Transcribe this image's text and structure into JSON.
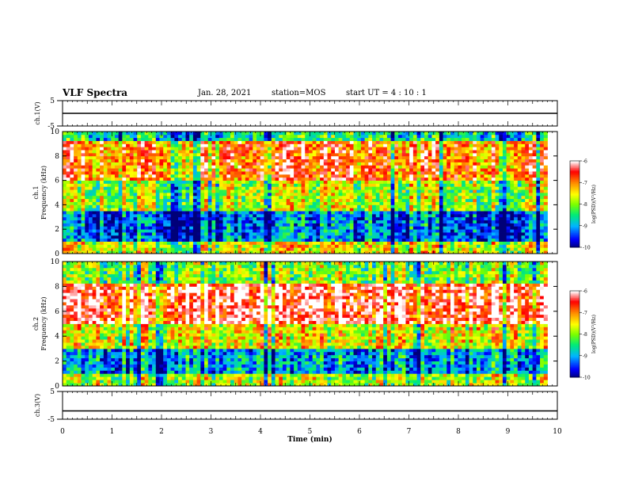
{
  "header": {
    "title": "VLF Spectra",
    "date": "Jan. 28, 2021",
    "station": "station=MOS",
    "start_ut": "start UT =  4 : 10 : 1"
  },
  "chart_data": [
    {
      "type": "line",
      "panel": "ch1-voltage",
      "ylabel": "ch.1(V)",
      "ylim": [
        -5,
        5
      ],
      "yticks": [
        "5",
        "-5"
      ],
      "x": [
        0,
        10
      ],
      "values": [
        0,
        0
      ],
      "color": "#000000"
    },
    {
      "type": "heatmap",
      "panel": "ch1-spectrogram",
      "ylabel_line1": "ch.1",
      "ylabel_line2": "Frequency (kHz)",
      "ylim": [
        0,
        10
      ],
      "yticks": [
        "0",
        "2",
        "4",
        "6",
        "8",
        "10"
      ],
      "xlim": [
        0,
        9.8
      ],
      "colorbar": {
        "label": "log(PSD)(V²/Hz)",
        "range": [
          -10,
          -6
        ],
        "ticks": [
          "-6",
          "-7",
          "-8",
          "-9",
          "-10"
        ]
      },
      "description_bands": [
        {
          "freq_khz": [
            0,
            1
          ],
          "level": -7.5
        },
        {
          "freq_khz": [
            1,
            3.5
          ],
          "level": -9.2
        },
        {
          "freq_khz": [
            3.5,
            6
          ],
          "level": -7.8
        },
        {
          "freq_khz": [
            6,
            9.3
          ],
          "level": -6.8
        },
        {
          "freq_khz": [
            9.3,
            10
          ],
          "level": -8.5
        }
      ]
    },
    {
      "type": "heatmap",
      "panel": "ch2-spectrogram",
      "ylabel_line1": "ch.2",
      "ylabel_line2": "Frequency (kHz)",
      "ylim": [
        0,
        10
      ],
      "yticks": [
        "0",
        "2",
        "4",
        "6",
        "8",
        "10"
      ],
      "xlim": [
        0,
        9.8
      ],
      "colorbar": {
        "label": "log(PSD)(V²/Hz)",
        "range": [
          -10,
          -6
        ],
        "ticks": [
          "-6",
          "-7",
          "-8",
          "-9",
          "-10"
        ]
      },
      "description_bands": [
        {
          "freq_khz": [
            0,
            1
          ],
          "level": -7.8
        },
        {
          "freq_khz": [
            1,
            3
          ],
          "level": -9.0
        },
        {
          "freq_khz": [
            3,
            5
          ],
          "level": -7.5
        },
        {
          "freq_khz": [
            5,
            8.2
          ],
          "level": -6.3
        },
        {
          "freq_khz": [
            8.2,
            10
          ],
          "level": -8.0
        }
      ]
    },
    {
      "type": "line",
      "panel": "ch3-voltage",
      "ylabel": "ch.3(V)",
      "ylim": [
        -5,
        5
      ],
      "yticks": [
        "5",
        "-5"
      ],
      "x": [
        0,
        10
      ],
      "values": [
        -2,
        -2
      ],
      "color": "#000000"
    }
  ],
  "xaxis": {
    "label": "Time (min)",
    "ticks": [
      "0",
      "1",
      "2",
      "3",
      "4",
      "5",
      "6",
      "7",
      "8",
      "9",
      "10"
    ],
    "range": [
      0,
      10
    ]
  }
}
